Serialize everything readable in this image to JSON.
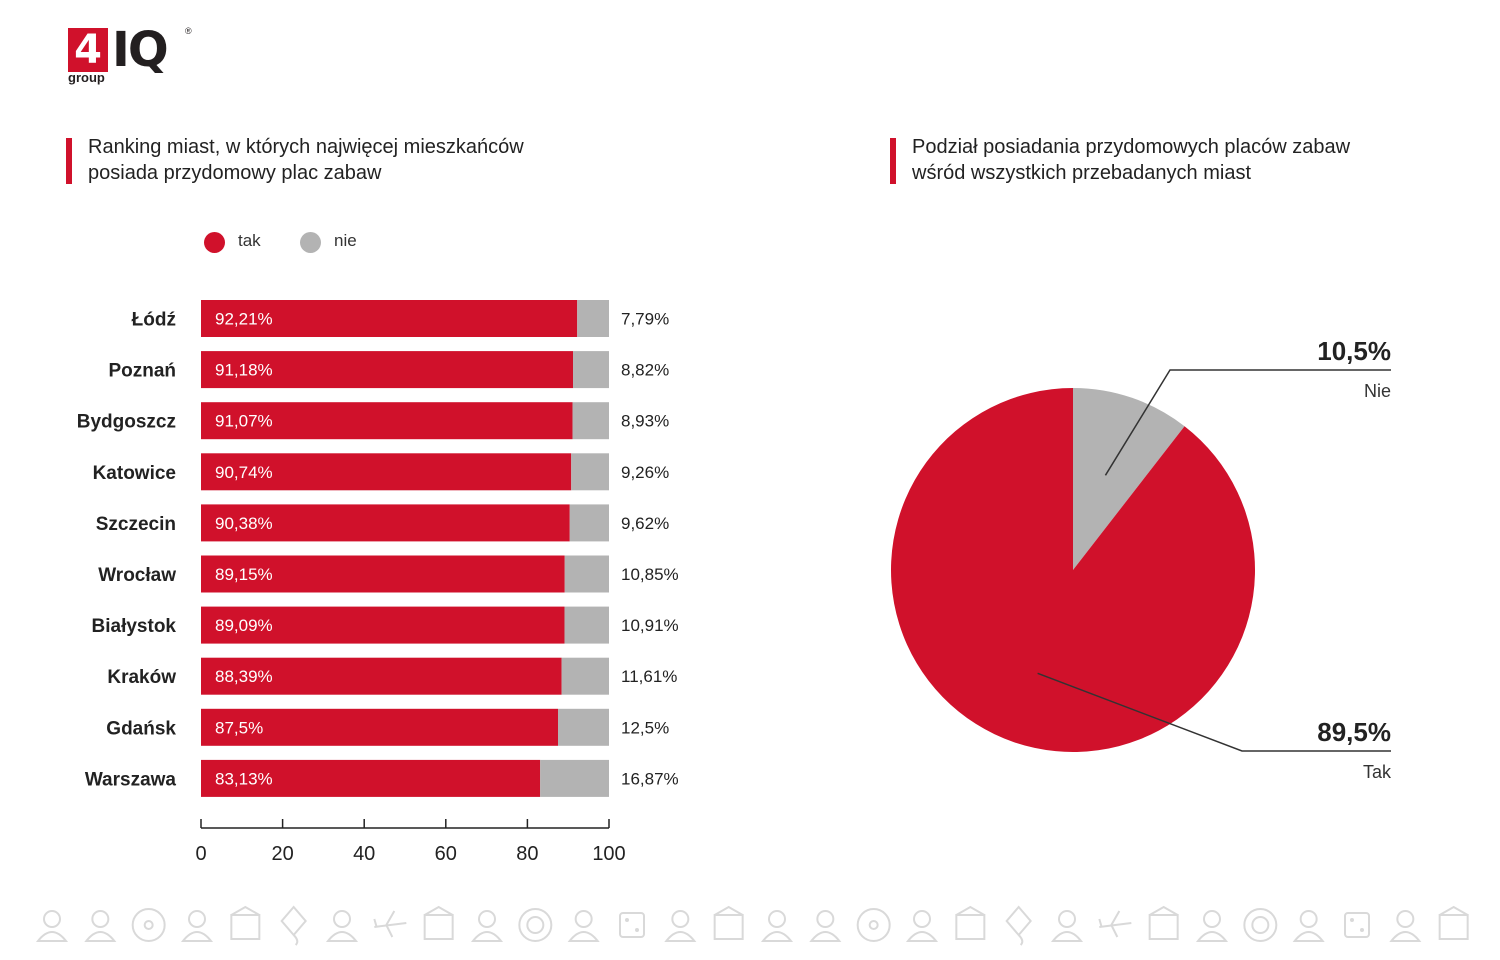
{
  "logo": {
    "number": "4",
    "letters": "IQ",
    "sub": "group",
    "reg": "®"
  },
  "left_title": {
    "line1": "Ranking miast, w których najwięcej mieszkańców",
    "line2": "posiada przydomowy plac zabaw"
  },
  "right_title": {
    "line1": "Podział posiadania przydomowych placów zabaw",
    "line2": "wśród wszystkich przebadanych miast"
  },
  "colors": {
    "accent": "#d0112b",
    "grey": "#b3b3b3",
    "icons": "#d9d9d9"
  },
  "chart_data": [
    {
      "type": "bar",
      "orientation": "horizontal",
      "stacked": true,
      "legend": {
        "position": "top-left",
        "entries": [
          "tak",
          "nie"
        ]
      },
      "categories": [
        "Łódź",
        "Poznań",
        "Bydgoszcz",
        "Katowice",
        "Szczecin",
        "Wrocław",
        "Białystok",
        "Kraków",
        "Gdańsk",
        "Warszawa"
      ],
      "series": [
        {
          "name": "tak",
          "color": "#d0112b",
          "values": [
            92.21,
            91.18,
            91.07,
            90.74,
            90.38,
            89.15,
            89.09,
            88.39,
            87.5,
            83.13
          ],
          "labels": [
            "92,21%",
            "91,18%",
            "91,07%",
            "90,74%",
            "90,38%",
            "89,15%",
            "89,09%",
            "88,39%",
            "87,5%",
            "83,13%"
          ]
        },
        {
          "name": "nie",
          "color": "#b3b3b3",
          "values": [
            7.79,
            8.82,
            8.93,
            9.26,
            9.62,
            10.85,
            10.91,
            11.61,
            12.5,
            16.87
          ],
          "labels": [
            "7,79%",
            "8,82%",
            "8,93%",
            "9,26%",
            "9,62%",
            "10,85%",
            "10,91%",
            "11,61%",
            "12,5%",
            "16,87%"
          ]
        }
      ],
      "xlim": [
        0,
        100
      ],
      "xticks": [
        0,
        20,
        40,
        60,
        80,
        100
      ],
      "xticklabels": [
        "0",
        "20",
        "40",
        "60",
        "80",
        "100"
      ],
      "grid": false
    },
    {
      "type": "pie",
      "slices": [
        {
          "name": "Nie",
          "value": 10.5,
          "label": "10,5%",
          "color": "#b3b3b3"
        },
        {
          "name": "Tak",
          "value": 89.5,
          "label": "89,5%",
          "color": "#d0112b"
        }
      ],
      "start_angle_deg": 0,
      "direction": "clockwise"
    }
  ]
}
